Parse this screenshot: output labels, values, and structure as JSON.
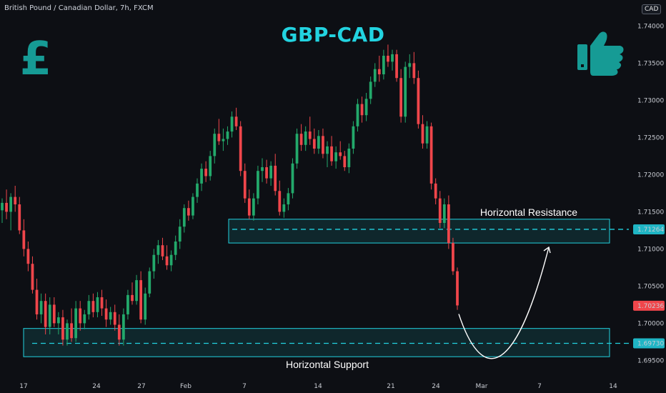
{
  "header": {
    "symbol_line": "British Pound / Canadian Dollar, 7h, FXCM",
    "currency_button": "CAD"
  },
  "chart_data": {
    "type": "candlestick",
    "title": "GBP-CAD",
    "ylim": [
      1.6935,
      1.7435
    ],
    "y_ticks": [
      "1.69500",
      "1.70000",
      "1.70500",
      "1.71000",
      "1.71500",
      "1.72000",
      "1.72500",
      "1.73000",
      "1.73500",
      "1.74000"
    ],
    "x_ticks": [
      "17",
      "24",
      "27",
      "Feb",
      "7",
      "14",
      "21",
      "24",
      "Mar",
      "7",
      "14"
    ],
    "price_labels": [
      {
        "value": "1.71264",
        "color": "#1fb5c4"
      },
      {
        "value": "1.70236",
        "color": "#f0464b"
      },
      {
        "value": "1.69730",
        "color": "#1fb5c4"
      }
    ],
    "resistance": {
      "label": "Horizontal Resistance",
      "level": 1.71264,
      "zone": [
        1.7108,
        1.714
      ]
    },
    "support": {
      "label": "Horizontal Support",
      "level": 1.6973,
      "zone": [
        1.6955,
        1.6993
      ]
    },
    "projection_target": 1.711,
    "colors": {
      "up": "#23a96b",
      "down": "#f0464b",
      "zone": "#22d3e0",
      "title": "#22d3e0"
    },
    "candles": [
      [
        1.7152,
        1.7168,
        1.7135,
        1.7162
      ],
      [
        1.7162,
        1.718,
        1.714,
        1.715
      ],
      [
        1.715,
        1.7175,
        1.7125,
        1.717
      ],
      [
        1.717,
        1.7185,
        1.715,
        1.716
      ],
      [
        1.716,
        1.717,
        1.712,
        1.7125
      ],
      [
        1.7125,
        1.714,
        1.709,
        1.71
      ],
      [
        1.71,
        1.711,
        1.707,
        1.708
      ],
      [
        1.708,
        1.709,
        1.704,
        1.7045
      ],
      [
        1.7045,
        1.706,
        1.7005,
        1.7012
      ],
      [
        1.7012,
        1.704,
        1.7,
        1.703
      ],
      [
        1.703,
        1.704,
        1.6985,
        1.6995
      ],
      [
        1.6995,
        1.7035,
        1.6985,
        1.7025
      ],
      [
        1.7025,
        1.7035,
        1.6995,
        1.7
      ],
      [
        1.7,
        1.7015,
        1.6985,
        1.7008
      ],
      [
        1.7008,
        1.7018,
        1.697,
        1.6978
      ],
      [
        1.6978,
        1.7005,
        1.697,
        1.7
      ],
      [
        1.7,
        1.702,
        1.6975,
        1.698
      ],
      [
        1.698,
        1.703,
        1.6975,
        1.702
      ],
      [
        1.702,
        1.703,
        1.699,
        1.7
      ],
      [
        1.7,
        1.7018,
        1.6992,
        1.7012
      ],
      [
        1.7012,
        1.7038,
        1.7005,
        1.703
      ],
      [
        1.703,
        1.704,
        1.7008,
        1.7015
      ],
      [
        1.7015,
        1.7042,
        1.7008,
        1.7035
      ],
      [
        1.7035,
        1.7045,
        1.701,
        1.702
      ],
      [
        1.702,
        1.7032,
        1.6995,
        1.7005
      ],
      [
        1.7005,
        1.7022,
        1.6998,
        1.7015
      ],
      [
        1.7015,
        1.7025,
        1.699,
        1.6998
      ],
      [
        1.6998,
        1.7012,
        1.697,
        1.6978
      ],
      [
        1.6978,
        1.702,
        1.697,
        1.7012
      ],
      [
        1.7012,
        1.7045,
        1.7005,
        1.7038
      ],
      [
        1.7038,
        1.7055,
        1.7025,
        1.703
      ],
      [
        1.703,
        1.7065,
        1.7025,
        1.7058
      ],
      [
        1.7058,
        1.707,
        1.7,
        1.7005
      ],
      [
        1.7005,
        1.7048,
        1.6998,
        1.704
      ],
      [
        1.704,
        1.7075,
        1.7035,
        1.707
      ],
      [
        1.707,
        1.71,
        1.706,
        1.7092
      ],
      [
        1.7092,
        1.7112,
        1.708,
        1.7105
      ],
      [
        1.7105,
        1.7115,
        1.7085,
        1.709
      ],
      [
        1.709,
        1.7105,
        1.7072,
        1.7078
      ],
      [
        1.7078,
        1.7098,
        1.707,
        1.7092
      ],
      [
        1.7092,
        1.7118,
        1.7085,
        1.711
      ],
      [
        1.711,
        1.714,
        1.71,
        1.713
      ],
      [
        1.713,
        1.716,
        1.7122,
        1.7155
      ],
      [
        1.7155,
        1.7165,
        1.7138,
        1.7145
      ],
      [
        1.7145,
        1.7175,
        1.714,
        1.717
      ],
      [
        1.717,
        1.7195,
        1.7162,
        1.7188
      ],
      [
        1.7188,
        1.7215,
        1.7178,
        1.7208
      ],
      [
        1.7208,
        1.7218,
        1.719,
        1.7198
      ],
      [
        1.7198,
        1.7232,
        1.7192,
        1.7225
      ],
      [
        1.7225,
        1.7262,
        1.7215,
        1.7255
      ],
      [
        1.7255,
        1.7275,
        1.724,
        1.7245
      ],
      [
        1.7245,
        1.7262,
        1.7232,
        1.7248
      ],
      [
        1.7248,
        1.7265,
        1.724,
        1.7258
      ],
      [
        1.7258,
        1.7285,
        1.725,
        1.7278
      ],
      [
        1.7278,
        1.729,
        1.726,
        1.7265
      ],
      [
        1.7265,
        1.7272,
        1.7198,
        1.7205
      ],
      [
        1.7205,
        1.7215,
        1.7162,
        1.7168
      ],
      [
        1.7168,
        1.718,
        1.714,
        1.7145
      ],
      [
        1.7145,
        1.7175,
        1.7138,
        1.7168
      ],
      [
        1.7168,
        1.7212,
        1.716,
        1.7205
      ],
      [
        1.7205,
        1.7222,
        1.719,
        1.721
      ],
      [
        1.721,
        1.722,
        1.7188,
        1.7195
      ],
      [
        1.7195,
        1.7218,
        1.7185,
        1.7212
      ],
      [
        1.7212,
        1.7228,
        1.7172,
        1.7178
      ],
      [
        1.7178,
        1.7192,
        1.7145,
        1.715
      ],
      [
        1.715,
        1.7168,
        1.7142,
        1.716
      ],
      [
        1.716,
        1.7182,
        1.7152,
        1.7175
      ],
      [
        1.7175,
        1.7222,
        1.7168,
        1.7215
      ],
      [
        1.7215,
        1.7262,
        1.7208,
        1.7255
      ],
      [
        1.7255,
        1.7268,
        1.7232,
        1.724
      ],
      [
        1.724,
        1.7265,
        1.7232,
        1.7258
      ],
      [
        1.7258,
        1.7278,
        1.724,
        1.7248
      ],
      [
        1.7248,
        1.7262,
        1.7228,
        1.7235
      ],
      [
        1.7235,
        1.726,
        1.7228,
        1.7252
      ],
      [
        1.7252,
        1.7262,
        1.7222,
        1.7228
      ],
      [
        1.7228,
        1.7245,
        1.721,
        1.7238
      ],
      [
        1.7238,
        1.7252,
        1.7212,
        1.7218
      ],
      [
        1.7218,
        1.7238,
        1.7208,
        1.723
      ],
      [
        1.723,
        1.7245,
        1.722,
        1.7225
      ],
      [
        1.7225,
        1.7232,
        1.7205,
        1.721
      ],
      [
        1.721,
        1.7242,
        1.7202,
        1.7235
      ],
      [
        1.7235,
        1.7272,
        1.7228,
        1.7265
      ],
      [
        1.7265,
        1.7302,
        1.7258,
        1.7295
      ],
      [
        1.7295,
        1.7305,
        1.727,
        1.728
      ],
      [
        1.728,
        1.731,
        1.7272,
        1.7302
      ],
      [
        1.7302,
        1.7332,
        1.7295,
        1.7325
      ],
      [
        1.7325,
        1.735,
        1.7318,
        1.7342
      ],
      [
        1.7342,
        1.736,
        1.7325,
        1.7335
      ],
      [
        1.7335,
        1.7368,
        1.7328,
        1.736
      ],
      [
        1.736,
        1.7375,
        1.7345,
        1.7352
      ],
      [
        1.7352,
        1.7368,
        1.734,
        1.7362
      ],
      [
        1.7362,
        1.7368,
        1.7325,
        1.733
      ],
      [
        1.733,
        1.7342,
        1.727,
        1.7278
      ],
      [
        1.7278,
        1.7352,
        1.727,
        1.7345
      ],
      [
        1.7345,
        1.7362,
        1.733,
        1.735
      ],
      [
        1.735,
        1.7365,
        1.7322,
        1.733
      ],
      [
        1.733,
        1.734,
        1.7262,
        1.7268
      ],
      [
        1.7268,
        1.728,
        1.7235,
        1.7242
      ],
      [
        1.7242,
        1.7272,
        1.7235,
        1.7265
      ],
      [
        1.7265,
        1.727,
        1.718,
        1.7188
      ],
      [
        1.7188,
        1.7195,
        1.716,
        1.7168
      ],
      [
        1.7168,
        1.7178,
        1.7128,
        1.7135
      ],
      [
        1.7135,
        1.7168,
        1.7128,
        1.716
      ],
      [
        1.716,
        1.7172,
        1.71,
        1.7108
      ],
      [
        1.7108,
        1.7115,
        1.7065,
        1.707
      ],
      [
        1.707,
        1.7075,
        1.7018,
        1.7024
      ]
    ]
  }
}
